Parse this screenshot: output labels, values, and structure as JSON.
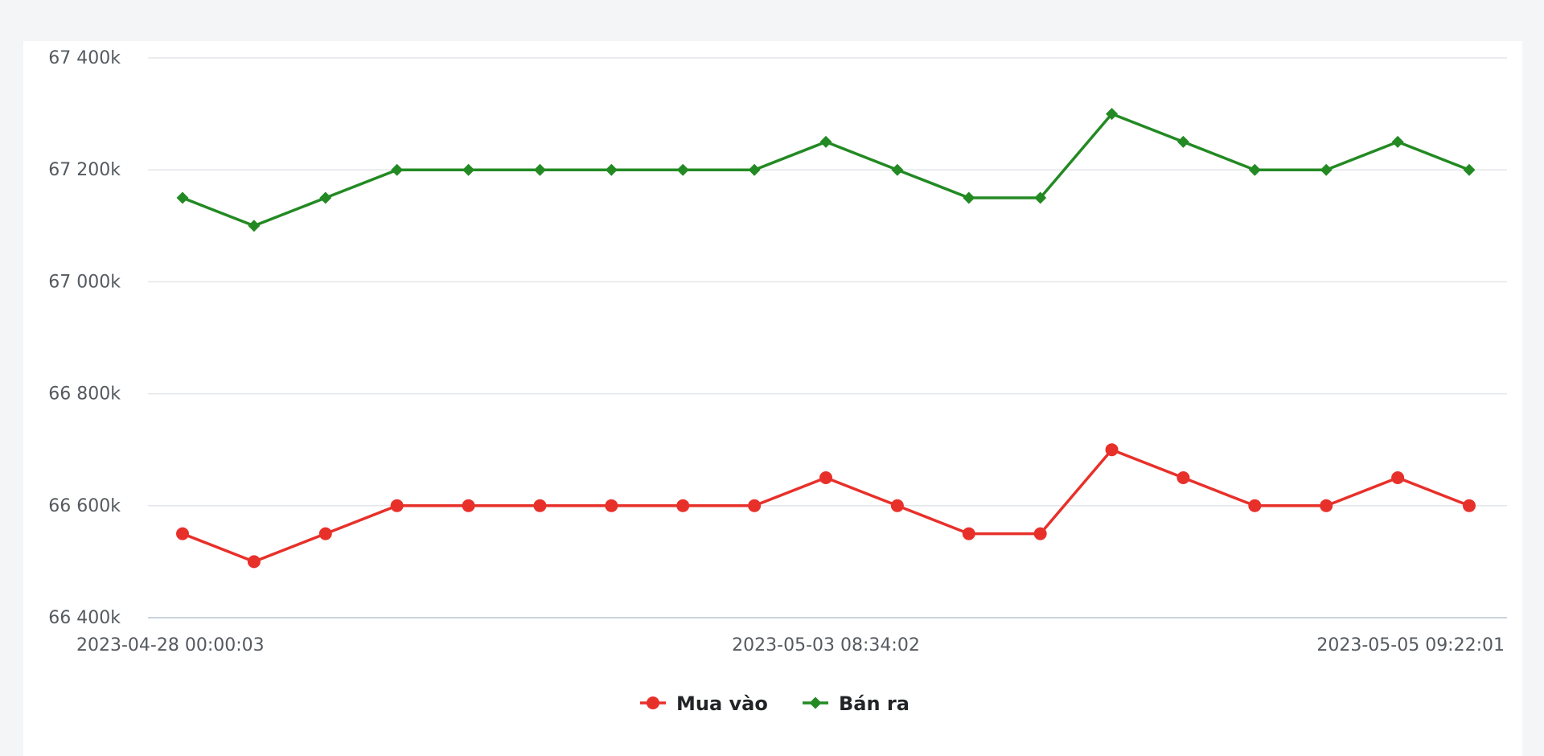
{
  "chart_data": {
    "type": "line",
    "x": [
      "2023-04-28 00:00:03",
      "",
      "",
      "",
      "",
      "",
      "",
      "",
      "",
      "2023-05-03 08:34:02",
      "",
      "",
      "",
      "",
      "",
      "",
      "",
      "",
      "2023-05-05 09:22:01"
    ],
    "x_tick_labels": [
      "2023-04-28 00:00:03",
      "2023-05-03 08:34:02",
      "2023-05-05 09:22:01"
    ],
    "y_tick_labels": [
      "66 400k",
      "66 600k",
      "66 800k",
      "67 000k",
      "67 200k",
      "67 400k"
    ],
    "ylim": [
      66400,
      67400
    ],
    "y_ticks": [
      66400,
      66600,
      66800,
      67000,
      67200,
      67400
    ],
    "grid": true,
    "legend_position": "bottom",
    "series": [
      {
        "name": "Mua vào",
        "color": "#e8302a",
        "marker": "circle",
        "values": [
          66550,
          66500,
          66550,
          66600,
          66600,
          66600,
          66600,
          66600,
          66600,
          66650,
          66600,
          66550,
          66550,
          66700,
          66650,
          66600,
          66600,
          66650,
          66600
        ]
      },
      {
        "name": "Bán ra",
        "color": "#238a23",
        "marker": "diamond",
        "values": [
          67150,
          67100,
          67150,
          67200,
          67200,
          67200,
          67200,
          67200,
          67200,
          67250,
          67200,
          67150,
          67150,
          67300,
          67250,
          67200,
          67200,
          67250,
          67200
        ]
      }
    ]
  }
}
